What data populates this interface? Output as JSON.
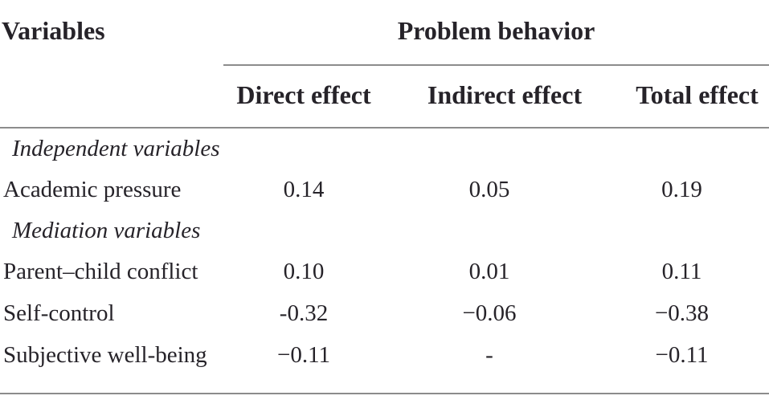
{
  "table": {
    "variables_header": "Variables",
    "span_header": "Problem behavior",
    "effect_headers": [
      "Direct effect",
      "Indirect effect",
      "Total effect"
    ],
    "sections": [
      {
        "label": "Independent variables",
        "rows": [
          {
            "label": "Academic pressure",
            "values": [
              "0.14",
              "0.05",
              "0.19"
            ]
          }
        ]
      },
      {
        "label": "Mediation variables",
        "rows": [
          {
            "label": "Parent–child conflict",
            "values": [
              "0.10",
              "0.01",
              "0.11"
            ]
          },
          {
            "label": "Self-control",
            "values": [
              "-0.32",
              "−0.06",
              "−0.38"
            ]
          },
          {
            "label": "Subjective well-being",
            "values": [
              "−0.11",
              "-",
              "−0.11"
            ]
          }
        ]
      }
    ],
    "colors": {
      "text": "#262329",
      "rule": "#8c8c8c",
      "background": "#ffffff"
    }
  }
}
